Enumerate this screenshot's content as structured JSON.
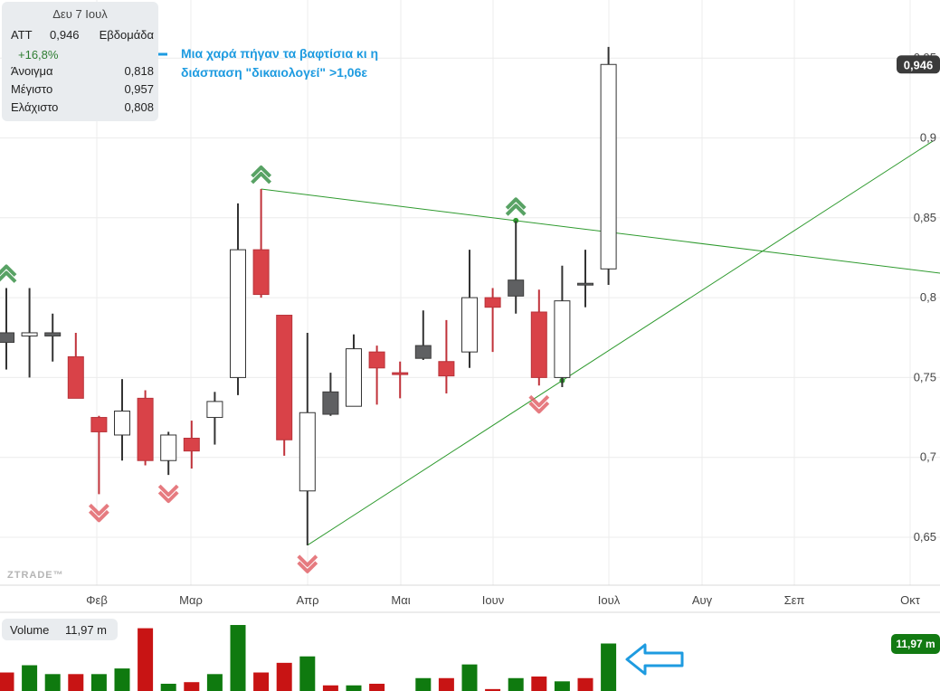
{
  "info": {
    "date": "Δευ 7 Ιουλ",
    "symbol": "ATT",
    "price": "0,946",
    "period": "Εβδομάδα",
    "change": "+16,8%",
    "open_label": "Άνοιγμα",
    "open_value": "0,818",
    "high_label": "Μέγιστο",
    "high_value": "0,957",
    "low_label": "Ελάχιστο",
    "low_value": "0,808"
  },
  "annotation": {
    "line1": "Μια χαρά πήγαν τα βαφτίσια κι η",
    "line2": "διάσπαση \"δικαιολογεί\" >1,06ε"
  },
  "volume_box": {
    "label": "Volume",
    "value": "11,97 m"
  },
  "watermark": "ZTRADE™",
  "colors": {
    "up": "#ffffff",
    "down": "#d94248",
    "down_dark": "#5f6062",
    "vol_up": "#0f7a0f",
    "vol_down": "#c81414",
    "trend": "#2e9a2e",
    "arrow": "#1e9be0",
    "price_tag": "#3b3b3b",
    "vol_tag": "#127a12"
  },
  "chart_data": {
    "type": "candlestick",
    "period": "weekly",
    "y_ticks": [
      "0,65",
      "0,7",
      "0,75",
      "0,8",
      "0,85",
      "0,9",
      "0,95"
    ],
    "ylim": [
      0.624,
      0.97
    ],
    "x_labels": [
      "Φεβ",
      "Μαρ",
      "Απρ",
      "Μαι",
      "Ιουν",
      "Ιουλ",
      "Αυγ",
      "Σεπ",
      "Οκτ"
    ],
    "last_price_tag": "0,946",
    "last_volume_tag": "11,97 m",
    "candles": [
      {
        "o": 0.772,
        "h": 0.806,
        "l": 0.755,
        "c": 0.778,
        "color": "down_dark"
      },
      {
        "o": 0.776,
        "h": 0.806,
        "l": 0.75,
        "c": 0.778,
        "color": "up"
      },
      {
        "o": 0.778,
        "h": 0.79,
        "l": 0.76,
        "c": 0.776,
        "color": "down_dark"
      },
      {
        "o": 0.763,
        "h": 0.778,
        "l": 0.738,
        "c": 0.737,
        "color": "down"
      },
      {
        "o": 0.725,
        "h": 0.726,
        "l": 0.677,
        "c": 0.716,
        "color": "down"
      },
      {
        "o": 0.714,
        "h": 0.749,
        "l": 0.698,
        "c": 0.729,
        "color": "up"
      },
      {
        "o": 0.737,
        "h": 0.742,
        "l": 0.695,
        "c": 0.698,
        "color": "down"
      },
      {
        "o": 0.698,
        "h": 0.716,
        "l": 0.689,
        "c": 0.714,
        "color": "up"
      },
      {
        "o": 0.712,
        "h": 0.723,
        "l": 0.693,
        "c": 0.704,
        "color": "down"
      },
      {
        "o": 0.725,
        "h": 0.741,
        "l": 0.708,
        "c": 0.735,
        "color": "up"
      },
      {
        "o": 0.75,
        "h": 0.859,
        "l": 0.739,
        "c": 0.83,
        "color": "up"
      },
      {
        "o": 0.83,
        "h": 0.868,
        "l": 0.8,
        "c": 0.802,
        "color": "down"
      },
      {
        "o": 0.789,
        "h": 0.789,
        "l": 0.701,
        "c": 0.711,
        "color": "down"
      },
      {
        "o": 0.679,
        "h": 0.778,
        "l": 0.645,
        "c": 0.728,
        "color": "up"
      },
      {
        "o": 0.741,
        "h": 0.753,
        "l": 0.726,
        "c": 0.727,
        "color": "down_dark"
      },
      {
        "o": 0.732,
        "h": 0.777,
        "l": 0.732,
        "c": 0.768,
        "color": "up"
      },
      {
        "o": 0.766,
        "h": 0.77,
        "l": 0.733,
        "c": 0.756,
        "color": "down"
      },
      {
        "o": 0.753,
        "h": 0.76,
        "l": 0.737,
        "c": 0.753,
        "color": "down"
      },
      {
        "o": 0.762,
        "h": 0.792,
        "l": 0.761,
        "c": 0.77,
        "color": "down_dark"
      },
      {
        "o": 0.76,
        "h": 0.786,
        "l": 0.74,
        "c": 0.751,
        "color": "down"
      },
      {
        "o": 0.766,
        "h": 0.83,
        "l": 0.756,
        "c": 0.8,
        "color": "up"
      },
      {
        "o": 0.8,
        "h": 0.806,
        "l": 0.766,
        "c": 0.794,
        "color": "down"
      },
      {
        "o": 0.811,
        "h": 0.848,
        "l": 0.79,
        "c": 0.801,
        "color": "down_dark"
      },
      {
        "o": 0.791,
        "h": 0.805,
        "l": 0.745,
        "c": 0.75,
        "color": "down"
      },
      {
        "o": 0.75,
        "h": 0.82,
        "l": 0.744,
        "c": 0.798,
        "color": "up"
      },
      {
        "o": 0.809,
        "h": 0.83,
        "l": 0.794,
        "c": 0.809,
        "color": "down_dark"
      },
      {
        "o": 0.818,
        "h": 0.957,
        "l": 0.808,
        "c": 0.946,
        "color": "up"
      }
    ],
    "volumes": [
      {
        "v": 1.15,
        "color": "vol_down"
      },
      {
        "v": 1.6,
        "color": "vol_up"
      },
      {
        "v": 1.05,
        "color": "vol_up"
      },
      {
        "v": 1.05,
        "color": "vol_down"
      },
      {
        "v": 1.05,
        "color": "vol_up"
      },
      {
        "v": 1.4,
        "color": "vol_up"
      },
      {
        "v": 3.9,
        "color": "vol_down"
      },
      {
        "v": 0.45,
        "color": "vol_up"
      },
      {
        "v": 0.55,
        "color": "vol_down"
      },
      {
        "v": 1.05,
        "color": "vol_up"
      },
      {
        "v": 4.1,
        "color": "vol_up"
      },
      {
        "v": 1.15,
        "color": "vol_down"
      },
      {
        "v": 1.75,
        "color": "vol_down"
      },
      {
        "v": 2.15,
        "color": "vol_up"
      },
      {
        "v": 0.35,
        "color": "vol_down"
      },
      {
        "v": 0.35,
        "color": "vol_up"
      },
      {
        "v": 0.45,
        "color": "vol_down"
      },
      {
        "v": 0.0,
        "color": "vol_up"
      },
      {
        "v": 0.8,
        "color": "vol_up"
      },
      {
        "v": 0.8,
        "color": "vol_down"
      },
      {
        "v": 1.65,
        "color": "vol_up"
      },
      {
        "v": 0.12,
        "color": "vol_down"
      },
      {
        "v": 0.8,
        "color": "vol_up"
      },
      {
        "v": 0.9,
        "color": "vol_down"
      },
      {
        "v": 0.6,
        "color": "vol_up"
      },
      {
        "v": 0.8,
        "color": "vol_down"
      },
      {
        "v": 2.95,
        "color": "vol_up"
      }
    ],
    "markers": [
      {
        "candle": 0,
        "kind": "up"
      },
      {
        "candle": 4,
        "kind": "down"
      },
      {
        "candle": 7,
        "kind": "down"
      },
      {
        "candle": 11,
        "kind": "up"
      },
      {
        "candle": 13,
        "kind": "down"
      },
      {
        "candle": 22,
        "kind": "up"
      },
      {
        "candle": 23,
        "kind": "down"
      }
    ],
    "trendlines": [
      {
        "from": [
          11,
          0.868
        ],
        "to": [
          40.5,
          0.815
        ],
        "via_dot": 22
      },
      {
        "from": [
          13,
          0.645
        ],
        "to": [
          40,
          0.898
        ],
        "via_dot": 24
      }
    ]
  }
}
